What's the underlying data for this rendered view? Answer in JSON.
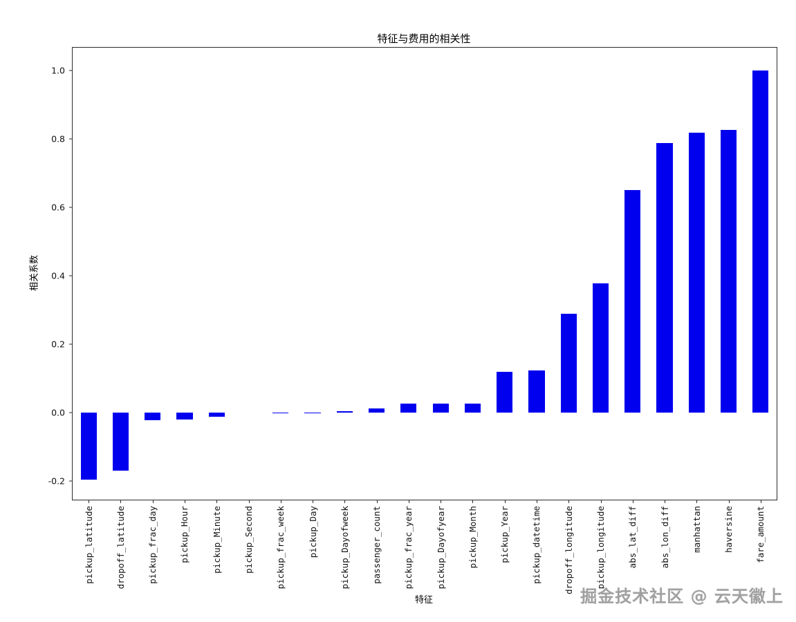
{
  "chart_data": {
    "type": "bar",
    "title": "特征与费用的相关性",
    "xlabel": "特征",
    "ylabel": "相关系数",
    "bar_color": "#0000ee",
    "grid": false,
    "legend": false,
    "ylim": [
      -0.2545,
      1.0667
    ],
    "yticks": [
      -0.2,
      0.0,
      0.2,
      0.4,
      0.6,
      0.8,
      1.0
    ],
    "categories": [
      "pickup_latitude",
      "dropoff_latitude",
      "pickup_frac_day",
      "pickup_Hour",
      "pickup_Minute",
      "pickup_Second",
      "pickup_frac_week",
      "pickup_Day",
      "pickup_Dayofweek",
      "passenger_count",
      "pickup_frac_year",
      "pickup_Dayofyear",
      "pickup_Month",
      "pickup_Year",
      "pickup_datetime",
      "dropoff_longitude",
      "pickup_longitude",
      "abs_lat_diff",
      "abs_lon_diff",
      "manhattan",
      "haversine",
      "fare_amount"
    ],
    "values": [
      -0.195,
      -0.17,
      -0.022,
      -0.021,
      -0.012,
      0.0,
      0.001,
      0.001,
      0.005,
      0.012,
      0.026,
      0.026,
      0.027,
      0.12,
      0.124,
      0.288,
      0.378,
      0.65,
      0.787,
      0.818,
      0.827,
      1.0
    ]
  },
  "watermark": {
    "text": "掘金技术社区 @ 云天徽上"
  }
}
